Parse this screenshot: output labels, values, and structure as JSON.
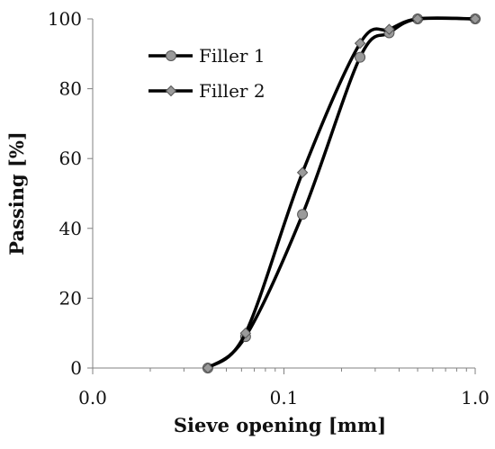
{
  "chart_data": {
    "type": "line",
    "xlabel": "Sieve opening [mm]",
    "ylabel": "Passing [%]",
    "x_scale": "log",
    "xlim": [
      0.01,
      1.0
    ],
    "ylim": [
      0,
      100
    ],
    "x_ticks": [
      0.01,
      0.1,
      1.0
    ],
    "x_tick_labels": [
      "0.0",
      "0.1",
      "1.0"
    ],
    "y_ticks": [
      0,
      20,
      40,
      60,
      80,
      100
    ],
    "y_tick_labels": [
      "0",
      "20",
      "40",
      "60",
      "80",
      "100"
    ],
    "grid": false,
    "legend_position": "top-left",
    "series": [
      {
        "name": "Filler 1",
        "marker": "circle",
        "color": "#000000",
        "marker_color": "#9a9a9a",
        "x": [
          0.04,
          0.063,
          0.125,
          0.25,
          0.355,
          0.5,
          1.0
        ],
        "y": [
          0,
          9,
          44,
          89,
          96,
          100,
          100
        ]
      },
      {
        "name": "Filler 2",
        "marker": "diamond",
        "color": "#000000",
        "marker_color": "#9a9a9a",
        "x": [
          0.04,
          0.063,
          0.125,
          0.25,
          0.355,
          0.5,
          1.0
        ],
        "y": [
          0,
          10,
          56,
          93,
          97,
          100,
          100
        ]
      }
    ]
  }
}
